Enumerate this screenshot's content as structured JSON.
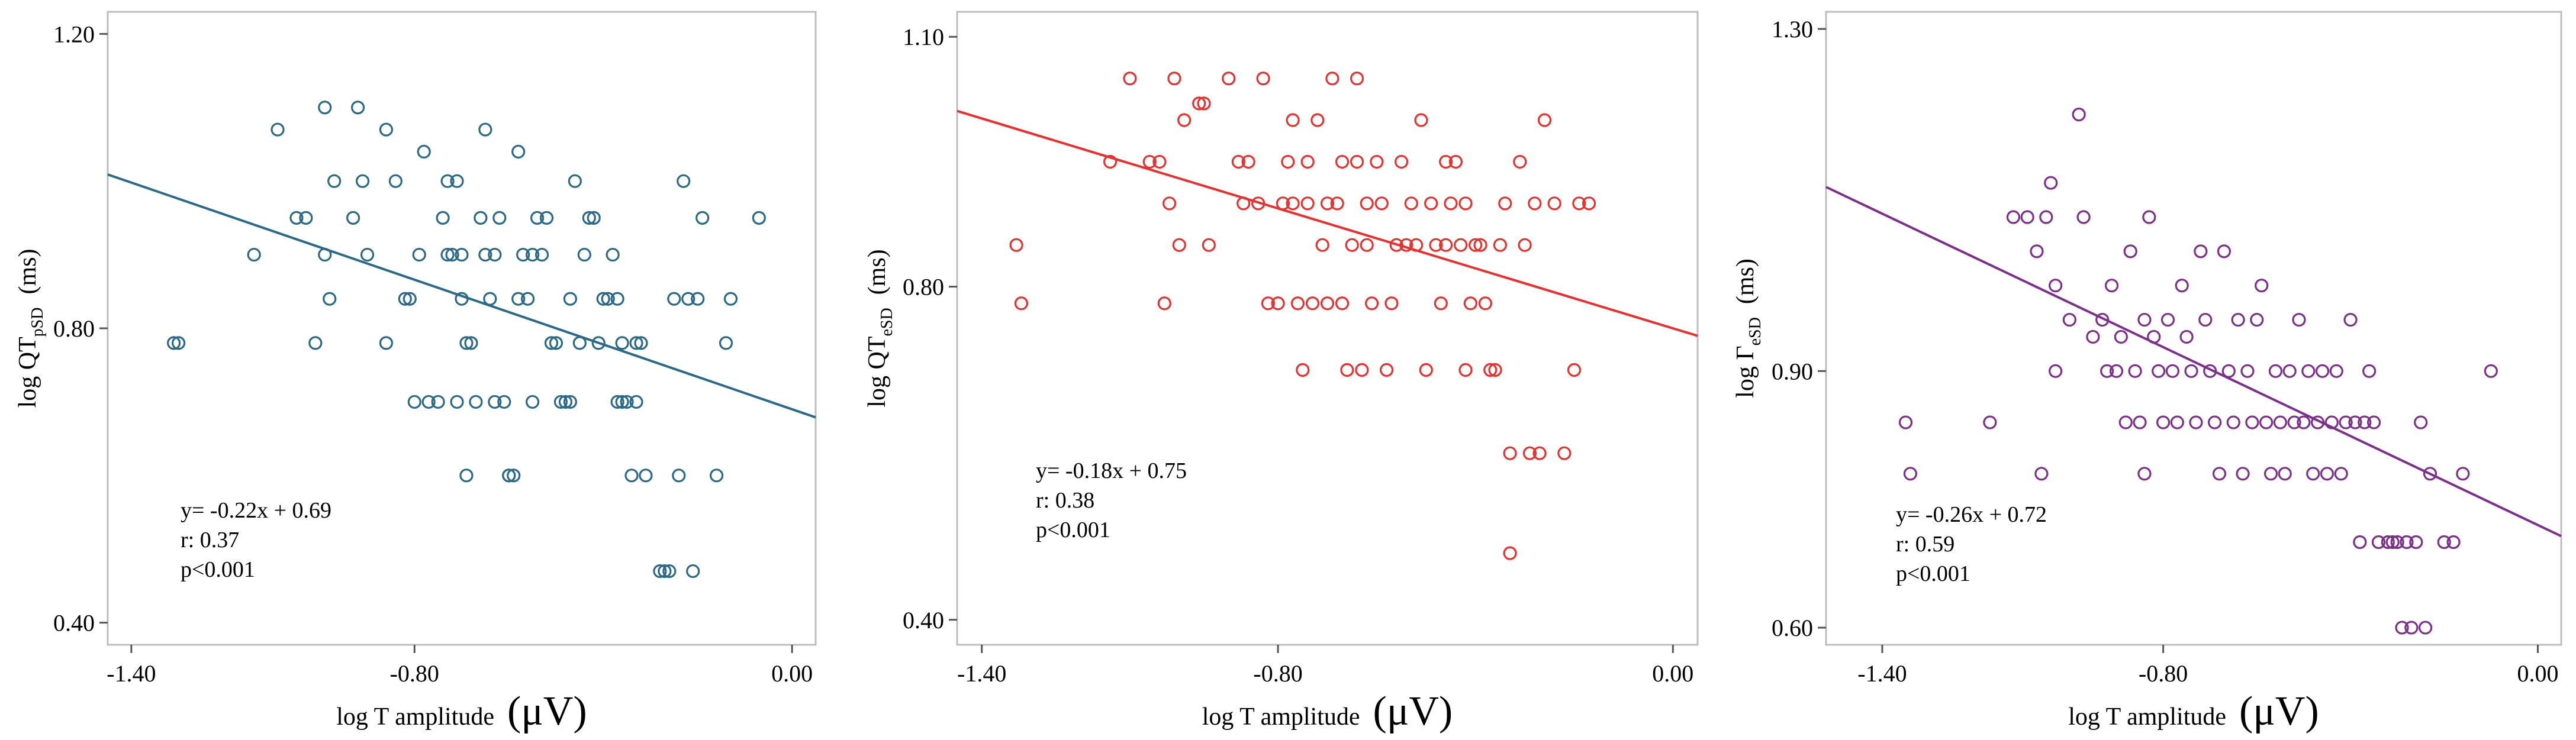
{
  "figure": {
    "panel_count": 3
  },
  "chart_data": [
    {
      "type": "scatter",
      "color": "#2a6a88",
      "ylabel": {
        "main": "log QT",
        "sub": "pSD",
        "unit": "(ms)"
      },
      "xlabel": {
        "main": "log  T amplitude",
        "unit": "(μV)"
      },
      "xlim": [
        -1.45,
        0.05
      ],
      "ylim": [
        0.37,
        1.23
      ],
      "xticks": [
        -1.4,
        -0.8,
        0.0
      ],
      "xtick_labels": [
        "-1.40",
        "-0.80",
        "0.00"
      ],
      "yticks": [
        0.4,
        0.8,
        1.2
      ],
      "ytick_labels": [
        "0.40",
        "0.80",
        "1.20"
      ],
      "regression": {
        "slope": -0.22,
        "intercept": 0.69
      },
      "annotation": [
        "y= -0.22x + 0.69",
        "r: 0.37",
        "p<0.001"
      ],
      "points": [
        [
          -1.31,
          0.78
        ],
        [
          -1.3,
          0.78
        ],
        [
          -1.14,
          0.9
        ],
        [
          -1.09,
          1.07
        ],
        [
          -1.05,
          0.95
        ],
        [
          -1.03,
          0.95
        ],
        [
          -1.01,
          0.78
        ],
        [
          -0.99,
          0.9
        ],
        [
          -0.99,
          1.1
        ],
        [
          -0.98,
          0.84
        ],
        [
          -0.97,
          1.0
        ],
        [
          -0.93,
          0.95
        ],
        [
          -0.92,
          1.1
        ],
        [
          -0.91,
          1.0
        ],
        [
          -0.9,
          0.9
        ],
        [
          -0.86,
          0.78
        ],
        [
          -0.86,
          1.07
        ],
        [
          -0.84,
          1.0
        ],
        [
          -0.82,
          0.84
        ],
        [
          -0.81,
          0.84
        ],
        [
          -0.8,
          0.7
        ],
        [
          -0.79,
          0.9
        ],
        [
          -0.78,
          1.04
        ],
        [
          -0.77,
          0.7
        ],
        [
          -0.75,
          0.7
        ],
        [
          -0.74,
          0.95
        ],
        [
          -0.73,
          0.9
        ],
        [
          -0.73,
          1.0
        ],
        [
          -0.72,
          0.9
        ],
        [
          -0.71,
          0.7
        ],
        [
          -0.71,
          1.0
        ],
        [
          -0.7,
          0.84
        ],
        [
          -0.7,
          0.9
        ],
        [
          -0.69,
          0.78
        ],
        [
          -0.69,
          0.6
        ],
        [
          -0.68,
          0.78
        ],
        [
          -0.67,
          0.7
        ],
        [
          -0.66,
          0.95
        ],
        [
          -0.65,
          0.9
        ],
        [
          -0.65,
          1.07
        ],
        [
          -0.64,
          0.84
        ],
        [
          -0.63,
          0.7
        ],
        [
          -0.63,
          0.9
        ],
        [
          -0.62,
          0.95
        ],
        [
          -0.61,
          0.7
        ],
        [
          -0.6,
          0.6
        ],
        [
          -0.6,
          0.6
        ],
        [
          -0.59,
          0.6
        ],
        [
          -0.58,
          0.84
        ],
        [
          -0.58,
          1.04
        ],
        [
          -0.57,
          0.9
        ],
        [
          -0.56,
          0.84
        ],
        [
          -0.55,
          0.9
        ],
        [
          -0.55,
          0.7
        ],
        [
          -0.54,
          0.95
        ],
        [
          -0.53,
          0.9
        ],
        [
          -0.52,
          0.95
        ],
        [
          -0.51,
          0.78
        ],
        [
          -0.5,
          0.78
        ],
        [
          -0.49,
          0.7
        ],
        [
          -0.48,
          0.7
        ],
        [
          -0.47,
          0.7
        ],
        [
          -0.47,
          0.84
        ],
        [
          -0.46,
          1.0
        ],
        [
          -0.45,
          0.78
        ],
        [
          -0.44,
          0.9
        ],
        [
          -0.43,
          0.95
        ],
        [
          -0.42,
          0.95
        ],
        [
          -0.41,
          0.78
        ],
        [
          -0.4,
          0.84
        ],
        [
          -0.39,
          0.84
        ],
        [
          -0.38,
          0.9
        ],
        [
          -0.37,
          0.84
        ],
        [
          -0.37,
          0.7
        ],
        [
          -0.36,
          0.7
        ],
        [
          -0.36,
          0.78
        ],
        [
          -0.35,
          0.7
        ],
        [
          -0.34,
          0.6
        ],
        [
          -0.33,
          0.7
        ],
        [
          -0.33,
          0.78
        ],
        [
          -0.32,
          0.78
        ],
        [
          -0.31,
          0.6
        ],
        [
          -0.28,
          0.47
        ],
        [
          -0.27,
          0.47
        ],
        [
          -0.26,
          0.47
        ],
        [
          -0.25,
          0.84
        ],
        [
          -0.24,
          0.6
        ],
        [
          -0.23,
          1.0
        ],
        [
          -0.22,
          0.84
        ],
        [
          -0.21,
          0.47
        ],
        [
          -0.2,
          0.84
        ],
        [
          -0.19,
          0.95
        ],
        [
          -0.16,
          0.6
        ],
        [
          -0.14,
          0.78
        ],
        [
          -0.13,
          0.84
        ],
        [
          -0.07,
          0.95
        ]
      ]
    },
    {
      "type": "scatter",
      "color": "#e8312f",
      "ylabel": {
        "main": "log QT",
        "sub": "eSD",
        "unit": "(ms)"
      },
      "xlabel": {
        "main": "log  T amplitude",
        "unit": "(μV)"
      },
      "xlim": [
        -1.45,
        0.05
      ],
      "ylim": [
        0.37,
        1.13
      ],
      "xticks": [
        -1.4,
        -0.8,
        0.0
      ],
      "xtick_labels": [
        "-1.40",
        "-0.80",
        "0.00"
      ],
      "yticks": [
        0.4,
        0.8,
        1.1
      ],
      "ytick_labels": [
        "0.40",
        "0.80",
        "1.10"
      ],
      "regression": {
        "slope": -0.18,
        "intercept": 0.75
      },
      "annotation": [
        "y= -0.18x + 0.75",
        "r: 0.38",
        "p<0.001"
      ],
      "points": [
        [
          -1.33,
          0.85
        ],
        [
          -1.32,
          0.78
        ],
        [
          -1.14,
          0.95
        ],
        [
          -1.1,
          1.05
        ],
        [
          -1.06,
          0.95
        ],
        [
          -1.04,
          0.95
        ],
        [
          -1.03,
          0.78
        ],
        [
          -1.02,
          0.9
        ],
        [
          -1.01,
          1.05
        ],
        [
          -1.0,
          0.85
        ],
        [
          -0.99,
          1.0
        ],
        [
          -0.96,
          1.02
        ],
        [
          -0.95,
          1.02
        ],
        [
          -0.94,
          0.85
        ],
        [
          -0.9,
          1.05
        ],
        [
          -0.88,
          0.95
        ],
        [
          -0.87,
          0.9
        ],
        [
          -0.86,
          0.95
        ],
        [
          -0.84,
          0.9
        ],
        [
          -0.83,
          1.05
        ],
        [
          -0.82,
          0.78
        ],
        [
          -0.8,
          0.78
        ],
        [
          -0.79,
          0.9
        ],
        [
          -0.78,
          0.95
        ],
        [
          -0.77,
          1.0
        ],
        [
          -0.77,
          0.9
        ],
        [
          -0.76,
          0.78
        ],
        [
          -0.75,
          0.7
        ],
        [
          -0.74,
          0.95
        ],
        [
          -0.74,
          0.9
        ],
        [
          -0.73,
          0.78
        ],
        [
          -0.72,
          1.0
        ],
        [
          -0.71,
          0.85
        ],
        [
          -0.7,
          0.78
        ],
        [
          -0.7,
          0.9
        ],
        [
          -0.69,
          1.05
        ],
        [
          -0.68,
          0.9
        ],
        [
          -0.67,
          0.95
        ],
        [
          -0.67,
          0.78
        ],
        [
          -0.66,
          0.7
        ],
        [
          -0.65,
          0.85
        ],
        [
          -0.64,
          0.95
        ],
        [
          -0.64,
          1.05
        ],
        [
          -0.63,
          0.7
        ],
        [
          -0.62,
          0.85
        ],
        [
          -0.62,
          0.9
        ],
        [
          -0.61,
          0.78
        ],
        [
          -0.6,
          0.95
        ],
        [
          -0.59,
          0.9
        ],
        [
          -0.58,
          0.7
        ],
        [
          -0.57,
          0.78
        ],
        [
          -0.56,
          0.85
        ],
        [
          -0.55,
          0.95
        ],
        [
          -0.54,
          0.85
        ],
        [
          -0.53,
          0.9
        ],
        [
          -0.52,
          0.85
        ],
        [
          -0.51,
          1.0
        ],
        [
          -0.5,
          0.7
        ],
        [
          -0.49,
          0.9
        ],
        [
          -0.48,
          0.85
        ],
        [
          -0.47,
          0.78
        ],
        [
          -0.46,
          0.95
        ],
        [
          -0.46,
          0.85
        ],
        [
          -0.45,
          0.9
        ],
        [
          -0.44,
          0.95
        ],
        [
          -0.43,
          0.85
        ],
        [
          -0.42,
          0.9
        ],
        [
          -0.42,
          0.7
        ],
        [
          -0.41,
          0.78
        ],
        [
          -0.4,
          0.85
        ],
        [
          -0.39,
          0.85
        ],
        [
          -0.38,
          0.78
        ],
        [
          -0.37,
          0.7
        ],
        [
          -0.36,
          0.7
        ],
        [
          -0.35,
          0.85
        ],
        [
          -0.34,
          0.9
        ],
        [
          -0.33,
          0.6
        ],
        [
          -0.33,
          0.48
        ],
        [
          -0.31,
          0.95
        ],
        [
          -0.3,
          0.85
        ],
        [
          -0.29,
          0.6
        ],
        [
          -0.28,
          0.9
        ],
        [
          -0.27,
          0.6
        ],
        [
          -0.26,
          1.0
        ],
        [
          -0.24,
          0.9
        ],
        [
          -0.22,
          0.6
        ],
        [
          -0.2,
          0.7
        ],
        [
          -0.19,
          0.9
        ],
        [
          -0.17,
          0.9
        ]
      ]
    },
    {
      "type": "scatter",
      "color": "#7d2f8c",
      "ylabel": {
        "main": "log Γ",
        "sub": "eSD",
        "unit": "(ms)"
      },
      "xlabel": {
        "main": "log  T amplitude",
        "unit": "(μV)"
      },
      "xlim": [
        -1.52,
        0.05
      ],
      "ylim": [
        0.58,
        1.32
      ],
      "xticks": [
        -1.4,
        -0.8,
        0.0
      ],
      "xtick_labels": [
        "-1.40",
        "-0.80",
        "0.00"
      ],
      "yticks": [
        0.6,
        0.9,
        1.3
      ],
      "ytick_labels": [
        "0.60",
        "0.90",
        "1.30"
      ],
      "regression": {
        "slope": -0.26,
        "intercept": 0.72
      },
      "annotation": [
        "y= -0.26x + 0.72",
        "r: 0.59",
        "p<0.001"
      ],
      "points": [
        [
          -1.35,
          0.84
        ],
        [
          -1.34,
          0.78
        ],
        [
          -1.17,
          0.84
        ],
        [
          -1.12,
          1.08
        ],
        [
          -1.09,
          1.08
        ],
        [
          -1.07,
          1.04
        ],
        [
          -1.06,
          0.78
        ],
        [
          -1.05,
          1.08
        ],
        [
          -1.04,
          1.12
        ],
        [
          -1.03,
          1.0
        ],
        [
          -1.03,
          0.9
        ],
        [
          -1.0,
          0.96
        ],
        [
          -0.98,
          1.2
        ],
        [
          -0.97,
          1.08
        ],
        [
          -0.95,
          0.94
        ],
        [
          -0.93,
          0.96
        ],
        [
          -0.92,
          0.9
        ],
        [
          -0.91,
          1.0
        ],
        [
          -0.9,
          0.9
        ],
        [
          -0.89,
          0.94
        ],
        [
          -0.88,
          0.84
        ],
        [
          -0.87,
          1.04
        ],
        [
          -0.86,
          0.9
        ],
        [
          -0.85,
          0.84
        ],
        [
          -0.84,
          0.96
        ],
        [
          -0.84,
          0.78
        ],
        [
          -0.83,
          1.08
        ],
        [
          -0.82,
          0.94
        ],
        [
          -0.81,
          0.9
        ],
        [
          -0.8,
          0.84
        ],
        [
          -0.79,
          0.96
        ],
        [
          -0.78,
          0.9
        ],
        [
          -0.77,
          0.84
        ],
        [
          -0.76,
          1.0
        ],
        [
          -0.75,
          0.94
        ],
        [
          -0.74,
          0.9
        ],
        [
          -0.73,
          0.84
        ],
        [
          -0.72,
          1.04
        ],
        [
          -0.71,
          0.96
        ],
        [
          -0.7,
          0.9
        ],
        [
          -0.69,
          0.84
        ],
        [
          -0.68,
          0.78
        ],
        [
          -0.67,
          1.04
        ],
        [
          -0.66,
          0.9
        ],
        [
          -0.65,
          0.84
        ],
        [
          -0.64,
          0.96
        ],
        [
          -0.63,
          0.78
        ],
        [
          -0.62,
          0.9
        ],
        [
          -0.61,
          0.84
        ],
        [
          -0.6,
          0.96
        ],
        [
          -0.59,
          1.0
        ],
        [
          -0.58,
          0.84
        ],
        [
          -0.57,
          0.78
        ],
        [
          -0.56,
          0.9
        ],
        [
          -0.55,
          0.84
        ],
        [
          -0.54,
          0.78
        ],
        [
          -0.53,
          0.9
        ],
        [
          -0.52,
          0.84
        ],
        [
          -0.51,
          0.96
        ],
        [
          -0.5,
          0.84
        ],
        [
          -0.49,
          0.9
        ],
        [
          -0.48,
          0.78
        ],
        [
          -0.47,
          0.84
        ],
        [
          -0.46,
          0.9
        ],
        [
          -0.45,
          0.78
        ],
        [
          -0.44,
          0.84
        ],
        [
          -0.43,
          0.9
        ],
        [
          -0.42,
          0.78
        ],
        [
          -0.41,
          0.84
        ],
        [
          -0.4,
          0.96
        ],
        [
          -0.39,
          0.84
        ],
        [
          -0.38,
          0.7
        ],
        [
          -0.37,
          0.84
        ],
        [
          -0.36,
          0.9
        ],
        [
          -0.35,
          0.84
        ],
        [
          -0.34,
          0.7
        ],
        [
          -0.32,
          0.7
        ],
        [
          -0.31,
          0.7
        ],
        [
          -0.3,
          0.7
        ],
        [
          -0.29,
          0.6
        ],
        [
          -0.28,
          0.7
        ],
        [
          -0.27,
          0.6
        ],
        [
          -0.26,
          0.7
        ],
        [
          -0.25,
          0.84
        ],
        [
          -0.24,
          0.6
        ],
        [
          -0.23,
          0.78
        ],
        [
          -0.2,
          0.7
        ],
        [
          -0.18,
          0.7
        ],
        [
          -0.16,
          0.78
        ],
        [
          -0.1,
          0.9
        ]
      ]
    }
  ]
}
